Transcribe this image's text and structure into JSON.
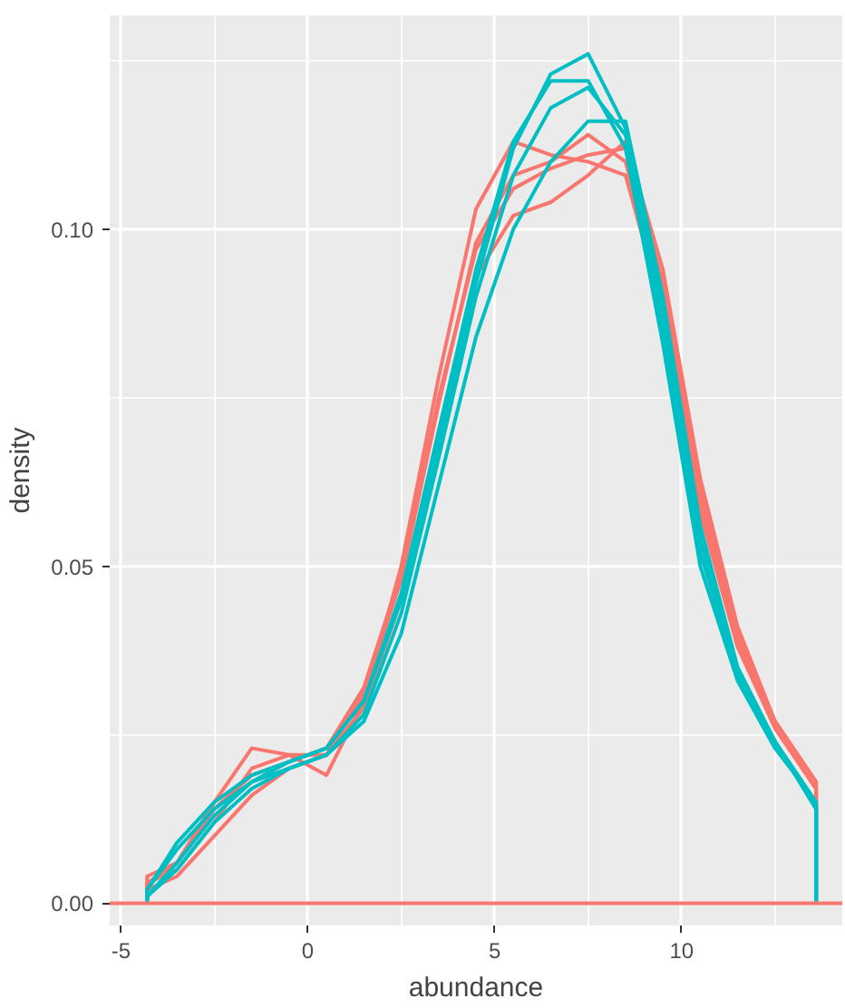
{
  "chart_data": {
    "type": "line",
    "xlabel": "abundance",
    "ylabel": "density",
    "xlim": [
      -5.3,
      14.3
    ],
    "ylim": [
      -0.0033,
      0.1317
    ],
    "xticks": [
      -5,
      0,
      5,
      10
    ],
    "yticks": [
      {
        "value": 0,
        "label": "0.00"
      },
      {
        "value": 0.05,
        "label": "0.05"
      },
      {
        "value": 0.1,
        "label": "0.10"
      }
    ],
    "grid": true,
    "line_style": "solid",
    "marker": "none",
    "ref_lines": [
      {
        "axis": "y",
        "value": 0,
        "color": "#f8766d"
      }
    ],
    "x": [
      -4.3,
      -4.3,
      -3.5,
      -2.5,
      -1.5,
      -0.5,
      0.5,
      1.5,
      2.5,
      3.5,
      4.5,
      5.5,
      6.5,
      7.5,
      8.5,
      9.5,
      10.5,
      11.5,
      12.5,
      13.6,
      13.6
    ],
    "series": [
      {
        "color": "#f8766d",
        "values": [
          0,
          0.004,
          0.006,
          0.015,
          0.023,
          0.022,
          0.019,
          0.03,
          0.05,
          0.078,
          0.103,
          0.113,
          0.111,
          0.11,
          0.108,
          0.088,
          0.058,
          0.038,
          0.026,
          0.017,
          0
        ]
      },
      {
        "color": "#f8766d",
        "values": [
          0,
          0.003,
          0.005,
          0.012,
          0.02,
          0.022,
          0.022,
          0.031,
          0.048,
          0.074,
          0.098,
          0.108,
          0.11,
          0.114,
          0.11,
          0.09,
          0.06,
          0.039,
          0.026,
          0.017,
          0
        ]
      },
      {
        "color": "#f8766d",
        "values": [
          0,
          0.003,
          0.006,
          0.014,
          0.019,
          0.021,
          0.023,
          0.032,
          0.049,
          0.075,
          0.097,
          0.106,
          0.109,
          0.111,
          0.112,
          0.092,
          0.061,
          0.04,
          0.027,
          0.018,
          0
        ]
      },
      {
        "color": "#f8766d",
        "values": [
          0,
          0.002,
          0.004,
          0.01,
          0.016,
          0.02,
          0.022,
          0.029,
          0.045,
          0.07,
          0.093,
          0.102,
          0.104,
          0.108,
          0.113,
          0.094,
          0.063,
          0.041,
          0.027,
          0.018,
          0
        ]
      },
      {
        "color": "#00bfc4",
        "values": [
          0,
          0.002,
          0.008,
          0.014,
          0.018,
          0.021,
          0.023,
          0.03,
          0.045,
          0.068,
          0.092,
          0.112,
          0.123,
          0.126,
          0.115,
          0.085,
          0.052,
          0.034,
          0.024,
          0.015,
          0
        ]
      },
      {
        "color": "#00bfc4",
        "values": [
          0,
          0.002,
          0.009,
          0.015,
          0.019,
          0.021,
          0.023,
          0.03,
          0.046,
          0.07,
          0.094,
          0.113,
          0.122,
          0.122,
          0.112,
          0.083,
          0.05,
          0.033,
          0.023,
          0.015,
          0
        ]
      },
      {
        "color": "#00bfc4",
        "values": [
          0,
          0.001,
          0.006,
          0.013,
          0.018,
          0.02,
          0.022,
          0.028,
          0.043,
          0.066,
          0.09,
          0.108,
          0.118,
          0.121,
          0.114,
          0.088,
          0.054,
          0.034,
          0.024,
          0.014,
          0
        ]
      },
      {
        "color": "#00bfc4",
        "values": [
          0,
          0.001,
          0.005,
          0.012,
          0.017,
          0.02,
          0.022,
          0.027,
          0.04,
          0.062,
          0.084,
          0.1,
          0.11,
          0.116,
          0.116,
          0.09,
          0.056,
          0.035,
          0.024,
          0.014,
          0
        ]
      }
    ]
  }
}
